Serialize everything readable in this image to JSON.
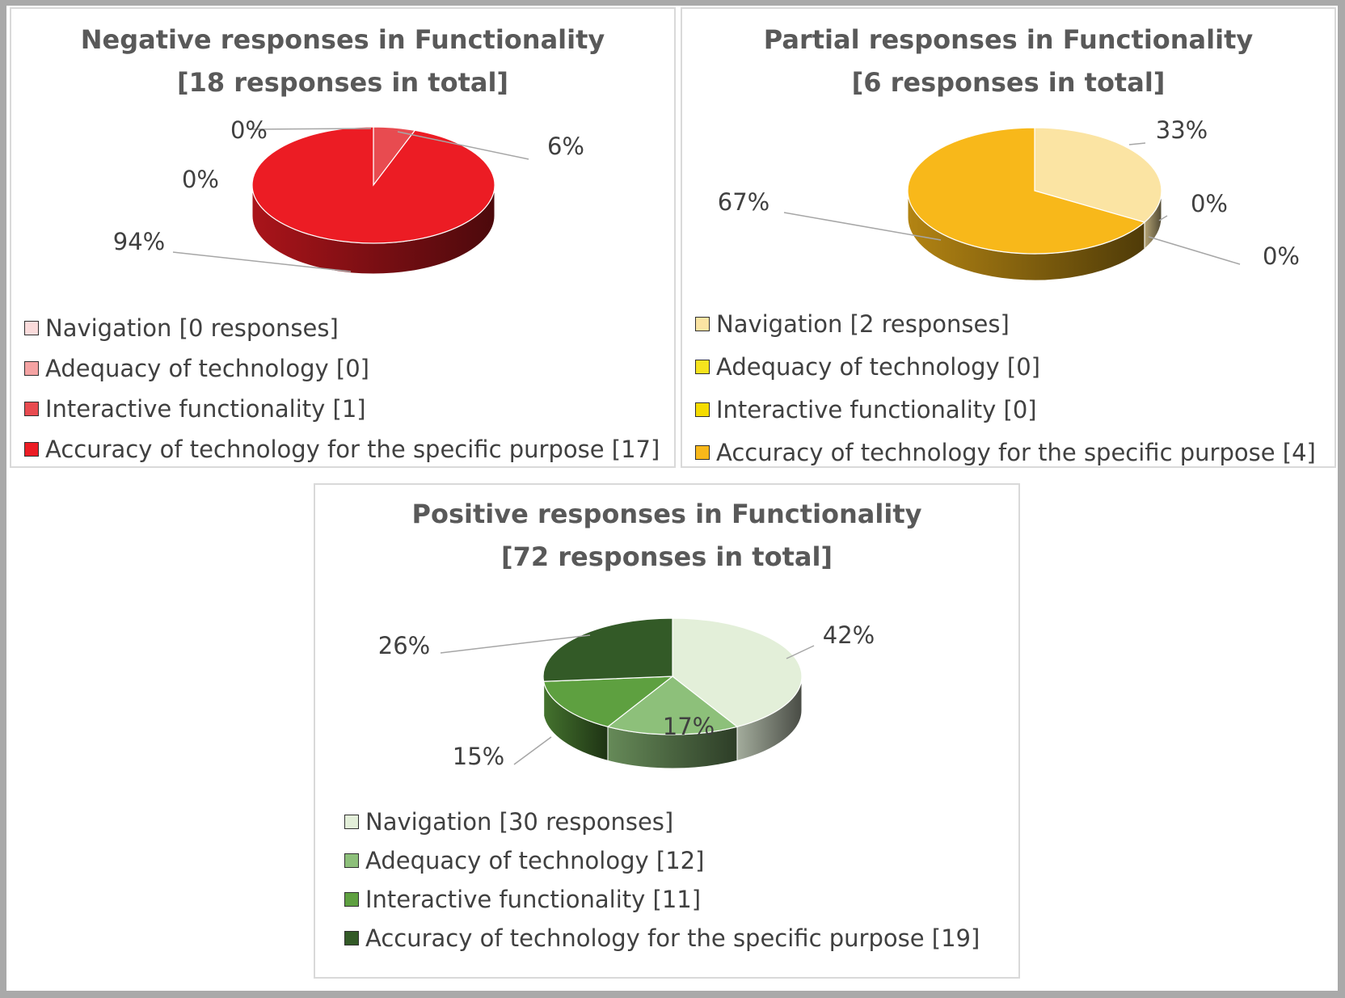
{
  "chart_data": [
    {
      "type": "pie",
      "title": [
        "Negative responses in Functionality",
        "[18 responses in total]"
      ],
      "categories": [
        "Navigation",
        "Adequacy of technology",
        "Interactive functionality",
        "Accuracy of technology for the specific purpose"
      ],
      "values": [
        0,
        0,
        1,
        17
      ],
      "data_labels": [
        "0%",
        "0%",
        "6%",
        "94%"
      ],
      "legend_labels": [
        "Navigation [0 responses]",
        "Adequacy of technology [0]",
        "Interactive functionality [1]",
        "Accuracy of technology for the specific purpose [17]"
      ],
      "colors": [
        "#fadbdb",
        "#f4a3a3",
        "#e84b50",
        "#ec1c24"
      ],
      "legend": "bottom"
    },
    {
      "type": "pie",
      "title": [
        "Partial responses in Functionality",
        "[6 responses in total]"
      ],
      "categories": [
        "Navigation",
        "Adequacy of technology",
        "Interactive functionality",
        "Accuracy of technology for the specific purpose"
      ],
      "values": [
        2,
        0,
        0,
        4
      ],
      "data_labels": [
        "33%",
        "0%",
        "0%",
        "67%"
      ],
      "legend_labels": [
        "Navigation [2 responses]",
        "Adequacy of technology [0]",
        "Interactive functionality [0]",
        "Accuracy of technology for the specific purpose [4]"
      ],
      "colors": [
        "#fbe4a3",
        "#f6e31e",
        "#f5dc00",
        "#f8b81a"
      ],
      "legend": "bottom"
    },
    {
      "type": "pie",
      "title": [
        "Positive responses in Functionality",
        "[72 responses in total]"
      ],
      "categories": [
        "Navigation",
        "Adequacy of technology",
        "Interactive functionality",
        "Accuracy of technology for the specific purpose"
      ],
      "values": [
        30,
        12,
        11,
        19
      ],
      "data_labels": [
        "42%",
        "17%",
        "15%",
        "26%"
      ],
      "legend_labels": [
        "Navigation [30 responses]",
        "Adequacy of technology [12]",
        "Interactive functionality [11]",
        "Accuracy of technology for the specific purpose [19]"
      ],
      "colors": [
        "#e3efd9",
        "#8dc07a",
        "#5ea040",
        "#335a27"
      ],
      "legend": "bottom"
    }
  ]
}
